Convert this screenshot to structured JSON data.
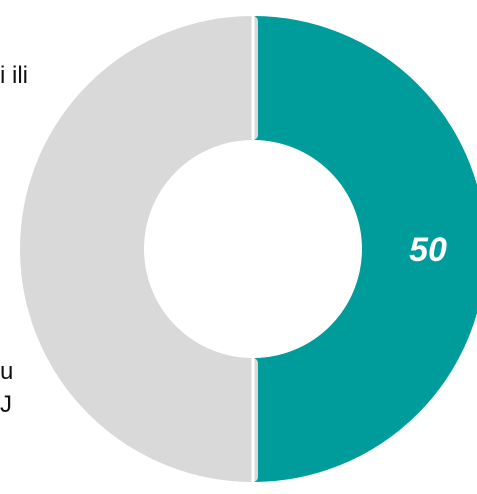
{
  "chart_data": {
    "type": "pie",
    "variant": "donut",
    "title": "",
    "slices": [
      {
        "value": 50,
        "color": "#D9D9D9",
        "label": ""
      },
      {
        "value": 50,
        "color": "#009B9B",
        "label": "50"
      }
    ],
    "label_color": "#FFFFFF"
  },
  "legend_fragments": {
    "top": "i ili",
    "middle": "u",
    "bottom": "J"
  }
}
